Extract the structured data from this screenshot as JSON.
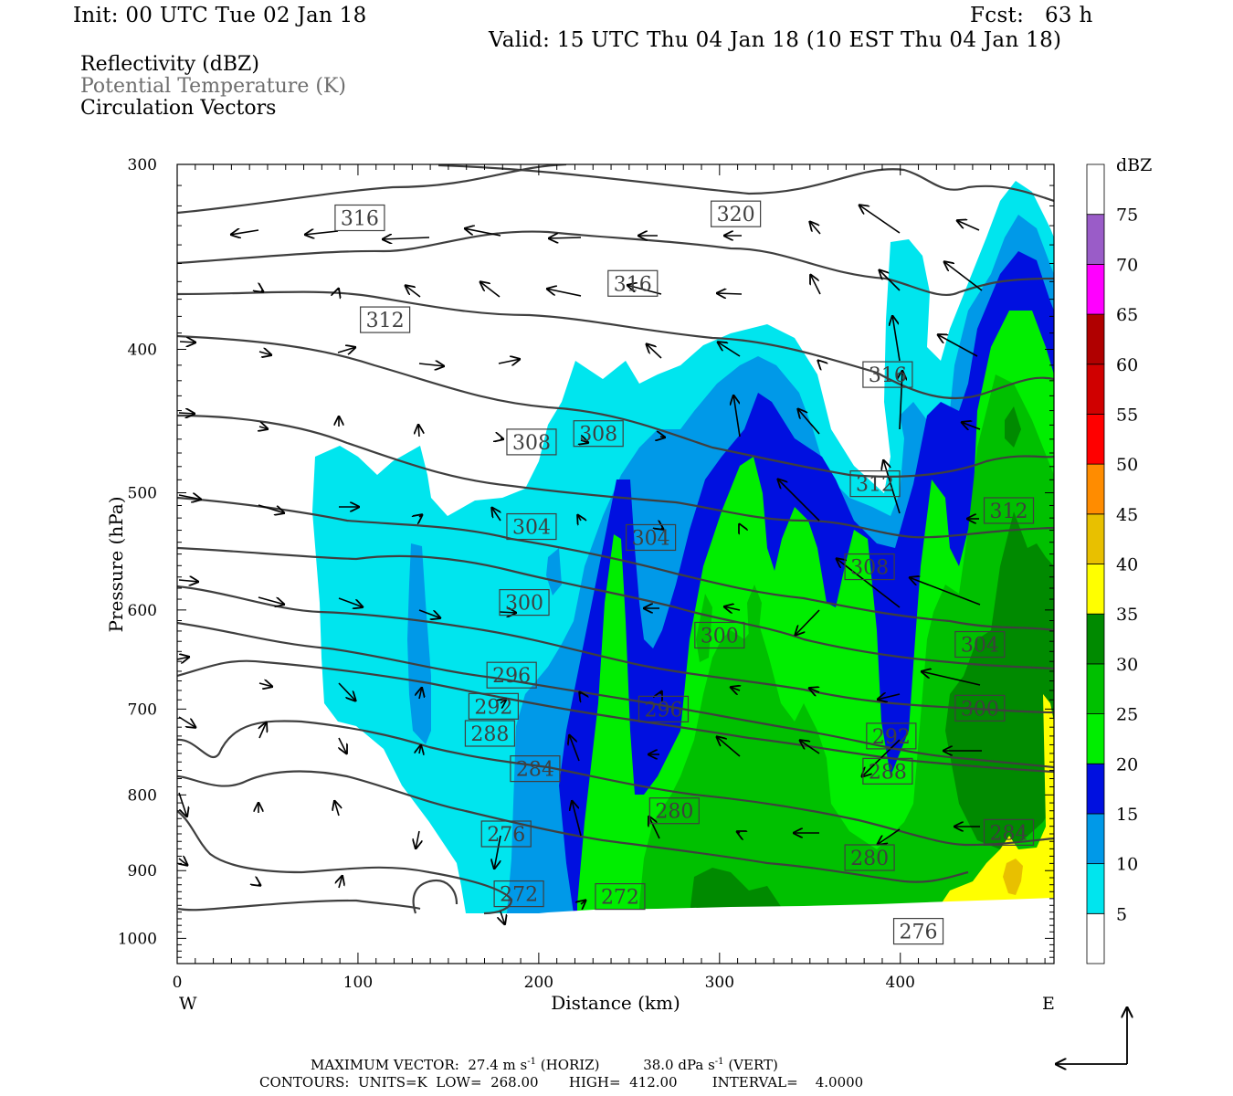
{
  "header": {
    "init": "Init: 00 UTC Tue 02 Jan 18",
    "fcst": "Fcst:   63 h",
    "valid": "Valid: 15 UTC Thu 04 Jan 18 (10 EST Thu 04 Jan 18)"
  },
  "fields": [
    "Reflectivity (dBZ)",
    "Potential Temperature (K)",
    "Circulation Vectors"
  ],
  "footer": {
    "max_vector_label": "MAXIMUM VECTOR:",
    "max_horiz": "27.4 m s",
    "horiz_tag": " (HORIZ)",
    "max_vert": "38.0 dPa s",
    "vert_tag": " (VERT)",
    "exp": "-1",
    "contours": "CONTOURS:  UNITS=K  LOW=  268.00       HIGH=  412.00        INTERVAL=    4.0000"
  },
  "chart_data": {
    "type": "cross-section",
    "xlabel": "Distance (km)",
    "ylabel": "Pressure (hPa)",
    "xlim": [
      0,
      485
    ],
    "ylim": [
      1040,
      300
    ],
    "y_log_scale": true,
    "x_ticks": [
      0,
      100,
      200,
      300,
      400
    ],
    "y_ticks": [
      300,
      400,
      500,
      600,
      700,
      800,
      900,
      1000
    ],
    "left_end_label": "W",
    "right_end_label": "E",
    "colorbar": {
      "title": "dBZ",
      "labels": [
        "5",
        "10",
        "15",
        "20",
        "25",
        "30",
        "35",
        "40",
        "45",
        "50",
        "55",
        "60",
        "65",
        "70",
        "75"
      ],
      "colors": [
        "#ffffff",
        "#00e5ee",
        "#0099e8",
        "#0010e0",
        "#00ee00",
        "#00c000",
        "#008a00",
        "#ffff00",
        "#e8c000",
        "#ff8c00",
        "#ff0000",
        "#d00000",
        "#b00000",
        "#ff00ff",
        "#9a5cc8",
        "#ffffff"
      ]
    },
    "theta_contour_labels": [
      {
        "value": "316",
        "x": 101,
        "p": 326
      },
      {
        "value": "320",
        "x": 309,
        "p": 324
      },
      {
        "value": "316",
        "x": 252,
        "p": 361
      },
      {
        "value": "312",
        "x": 115,
        "p": 382
      },
      {
        "value": "316",
        "x": 393,
        "p": 416
      },
      {
        "value": "308",
        "x": 196,
        "p": 462
      },
      {
        "value": "308",
        "x": 233,
        "p": 456
      },
      {
        "value": "312",
        "x": 386,
        "p": 493
      },
      {
        "value": "312",
        "x": 460,
        "p": 514
      },
      {
        "value": "304",
        "x": 196,
        "p": 527
      },
      {
        "value": "304",
        "x": 262,
        "p": 536
      },
      {
        "value": "308",
        "x": 383,
        "p": 561
      },
      {
        "value": "300",
        "x": 192,
        "p": 593
      },
      {
        "value": "300",
        "x": 300,
        "p": 624
      },
      {
        "value": "304",
        "x": 444,
        "p": 633
      },
      {
        "value": "296",
        "x": 185,
        "p": 664
      },
      {
        "value": "292",
        "x": 175,
        "p": 697
      },
      {
        "value": "296",
        "x": 269,
        "p": 700
      },
      {
        "value": "300",
        "x": 444,
        "p": 699
      },
      {
        "value": "288",
        "x": 173,
        "p": 727
      },
      {
        "value": "292",
        "x": 395,
        "p": 730
      },
      {
        "value": "284",
        "x": 198,
        "p": 768
      },
      {
        "value": "288",
        "x": 393,
        "p": 771
      },
      {
        "value": "280",
        "x": 275,
        "p": 820
      },
      {
        "value": "276",
        "x": 182,
        "p": 850
      },
      {
        "value": "284",
        "x": 460,
        "p": 848
      },
      {
        "value": "280",
        "x": 383,
        "p": 882
      },
      {
        "value": "272",
        "x": 189,
        "p": 933
      },
      {
        "value": "272",
        "x": 245,
        "p": 937
      },
      {
        "value": "276",
        "x": 410,
        "p": 989
      }
    ]
  }
}
